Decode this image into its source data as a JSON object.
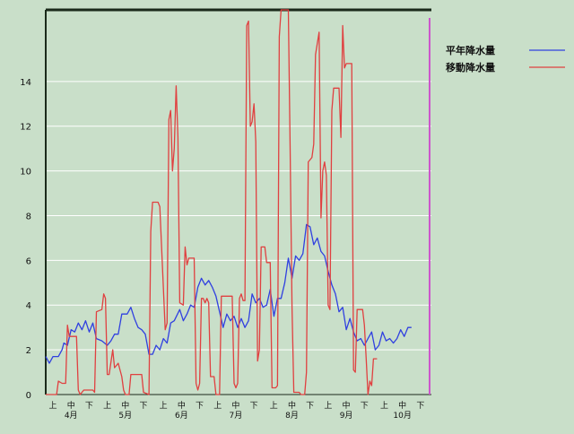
{
  "chart_data": {
    "type": "line",
    "title": "",
    "xlabel": "",
    "ylabel": "",
    "ylim": [
      0,
      17.2
    ],
    "y_ticks": [
      0,
      2,
      4,
      6,
      8,
      10,
      12,
      14
    ],
    "grid": true,
    "legend_position": "top-right",
    "x_tick_labels": [
      {
        "label": "上",
        "x": 1
      },
      {
        "label": "中",
        "x": 11
      },
      {
        "label": "下",
        "x": 21
      },
      {
        "label": "上",
        "x": 31
      },
      {
        "label": "中",
        "x": 41
      },
      {
        "label": "下",
        "x": 51
      },
      {
        "label": "上",
        "x": 62
      },
      {
        "label": "中",
        "x": 72
      },
      {
        "label": "下",
        "x": 82
      },
      {
        "label": "上",
        "x": 92
      },
      {
        "label": "中",
        "x": 102
      },
      {
        "label": "下",
        "x": 112
      },
      {
        "label": "上",
        "x": 123
      },
      {
        "label": "中",
        "x": 133
      },
      {
        "label": "下",
        "x": 143
      },
      {
        "label": "上",
        "x": 153
      },
      {
        "label": "中",
        "x": 163
      },
      {
        "label": "下",
        "x": 173
      },
      {
        "label": "上",
        "x": 184
      },
      {
        "label": "中",
        "x": 194
      },
      {
        "label": "下",
        "x": 204
      }
    ],
    "month_labels": [
      {
        "label": "4月",
        "x": 11
      },
      {
        "label": "5月",
        "x": 41
      },
      {
        "label": "6月",
        "x": 72
      },
      {
        "label": "7月",
        "x": 102
      },
      {
        "label": "8月",
        "x": 133
      },
      {
        "label": "9月",
        "x": 163
      },
      {
        "label": "10月",
        "x": 194
      }
    ],
    "x_range": [
      0,
      213
    ],
    "marker_x": 212,
    "series": [
      {
        "name": "平年降水量",
        "color": "#3040e0",
        "points": [
          [
            0,
            1.7
          ],
          [
            2,
            1.4
          ],
          [
            4,
            1.7
          ],
          [
            7,
            1.7
          ],
          [
            9,
            2.0
          ],
          [
            10,
            2.3
          ],
          [
            12,
            2.2
          ],
          [
            14,
            2.9
          ],
          [
            16,
            2.8
          ],
          [
            18,
            3.2
          ],
          [
            20,
            2.9
          ],
          [
            22,
            3.3
          ],
          [
            24,
            2.8
          ],
          [
            26,
            3.2
          ],
          [
            28,
            2.5
          ],
          [
            31,
            2.4
          ],
          [
            34,
            2.2
          ],
          [
            36,
            2.4
          ],
          [
            38,
            2.7
          ],
          [
            40,
            2.7
          ],
          [
            42,
            3.6
          ],
          [
            45,
            3.6
          ],
          [
            47,
            3.9
          ],
          [
            49,
            3.4
          ],
          [
            51,
            3.0
          ],
          [
            53,
            2.9
          ],
          [
            55,
            2.7
          ],
          [
            57,
            1.8
          ],
          [
            59,
            1.8
          ],
          [
            61,
            2.2
          ],
          [
            63,
            2.0
          ],
          [
            65,
            2.5
          ],
          [
            67,
            2.3
          ],
          [
            69,
            3.2
          ],
          [
            71,
            3.3
          ],
          [
            74,
            3.8
          ],
          [
            76,
            3.3
          ],
          [
            78,
            3.6
          ],
          [
            80,
            4.0
          ],
          [
            82,
            3.9
          ],
          [
            84,
            4.8
          ],
          [
            86,
            5.2
          ],
          [
            88,
            4.9
          ],
          [
            90,
            5.1
          ],
          [
            92,
            4.8
          ],
          [
            94,
            4.4
          ],
          [
            96,
            3.7
          ],
          [
            98,
            3.0
          ],
          [
            100,
            3.6
          ],
          [
            102,
            3.3
          ],
          [
            104,
            3.5
          ],
          [
            106,
            3.0
          ],
          [
            108,
            3.4
          ],
          [
            110,
            3.0
          ],
          [
            112,
            3.3
          ],
          [
            114,
            4.5
          ],
          [
            116,
            4.1
          ],
          [
            118,
            4.3
          ],
          [
            120,
            3.9
          ],
          [
            122,
            4.0
          ],
          [
            124,
            4.7
          ],
          [
            126,
            3.5
          ],
          [
            128,
            4.3
          ],
          [
            130,
            4.3
          ],
          [
            132,
            5.0
          ],
          [
            134,
            6.1
          ],
          [
            136,
            5.2
          ],
          [
            138,
            6.2
          ],
          [
            140,
            6.0
          ],
          [
            142,
            6.3
          ],
          [
            144,
            7.6
          ],
          [
            146,
            7.5
          ],
          [
            148,
            6.7
          ],
          [
            150,
            7.0
          ],
          [
            152,
            6.4
          ],
          [
            154,
            6.2
          ],
          [
            156,
            5.5
          ],
          [
            158,
            4.9
          ],
          [
            160,
            4.5
          ],
          [
            162,
            3.7
          ],
          [
            164,
            3.9
          ],
          [
            166,
            2.9
          ],
          [
            168,
            3.4
          ],
          [
            170,
            2.8
          ],
          [
            172,
            2.4
          ],
          [
            174,
            2.5
          ],
          [
            176,
            2.2
          ],
          [
            178,
            2.5
          ],
          [
            180,
            2.8
          ],
          [
            182,
            2.0
          ],
          [
            184,
            2.2
          ],
          [
            186,
            2.8
          ],
          [
            188,
            2.4
          ],
          [
            190,
            2.5
          ],
          [
            192,
            2.3
          ],
          [
            194,
            2.5
          ],
          [
            196,
            2.9
          ],
          [
            198,
            2.6
          ],
          [
            200,
            3.0
          ],
          [
            202,
            3.0
          ]
        ]
      },
      {
        "name": "移動降水量",
        "color": "#e04040",
        "points": [
          [
            0,
            0
          ],
          [
            6,
            0
          ],
          [
            7,
            0.6
          ],
          [
            9,
            0.5
          ],
          [
            11,
            0.5
          ],
          [
            12,
            3.1
          ],
          [
            13,
            2.6
          ],
          [
            17,
            2.6
          ],
          [
            18,
            0.2
          ],
          [
            19,
            0
          ],
          [
            21,
            0.2
          ],
          [
            26,
            0.2
          ],
          [
            27,
            0.1
          ],
          [
            28,
            3.7
          ],
          [
            31,
            3.8
          ],
          [
            32,
            4.5
          ],
          [
            33,
            4.3
          ],
          [
            34,
            0.9
          ],
          [
            35,
            0.9
          ],
          [
            37,
            2.0
          ],
          [
            38,
            1.2
          ],
          [
            40,
            1.4
          ],
          [
            42,
            0.8
          ],
          [
            43,
            0.2
          ],
          [
            44,
            0
          ],
          [
            46,
            0
          ],
          [
            47,
            0.9
          ],
          [
            53,
            0.9
          ],
          [
            54,
            0.1
          ],
          [
            57,
            0
          ],
          [
            58,
            7.3
          ],
          [
            59,
            8.6
          ],
          [
            62,
            8.6
          ],
          [
            63,
            8.4
          ],
          [
            66,
            2.9
          ],
          [
            67,
            3.2
          ],
          [
            68,
            12.3
          ],
          [
            69,
            12.7
          ],
          [
            70,
            10.0
          ],
          [
            71,
            11.0
          ],
          [
            72,
            13.8
          ],
          [
            73,
            11.5
          ],
          [
            74,
            4.1
          ],
          [
            76,
            4.0
          ],
          [
            77,
            6.6
          ],
          [
            78,
            5.8
          ],
          [
            79,
            6.1
          ],
          [
            82,
            6.1
          ],
          [
            83,
            0.5
          ],
          [
            84,
            0.2
          ],
          [
            85,
            0.5
          ],
          [
            86,
            4.3
          ],
          [
            87,
            4.3
          ],
          [
            88,
            4.1
          ],
          [
            89,
            4.3
          ],
          [
            90,
            4.1
          ],
          [
            91,
            0.8
          ],
          [
            93,
            0.8
          ],
          [
            94,
            0
          ],
          [
            96,
            0
          ],
          [
            97,
            4.4
          ],
          [
            103,
            4.4
          ],
          [
            104,
            0.5
          ],
          [
            105,
            0.3
          ],
          [
            106,
            0.5
          ],
          [
            107,
            4.3
          ],
          [
            108,
            4.5
          ],
          [
            109,
            4.2
          ],
          [
            110,
            4.2
          ],
          [
            111,
            16.5
          ],
          [
            112,
            16.7
          ],
          [
            113,
            12.0
          ],
          [
            114,
            12.2
          ],
          [
            115,
            13.0
          ],
          [
            116,
            11.3
          ],
          [
            117,
            1.5
          ],
          [
            118,
            2.0
          ],
          [
            119,
            6.6
          ],
          [
            121,
            6.6
          ],
          [
            122,
            5.9
          ],
          [
            124,
            5.9
          ],
          [
            125,
            0.3
          ],
          [
            127,
            0.3
          ],
          [
            128,
            0.4
          ],
          [
            129,
            16.0
          ],
          [
            130,
            17.2
          ],
          [
            134,
            17.2
          ],
          [
            135,
            11.0
          ],
          [
            136,
            3.9
          ],
          [
            137,
            0.1
          ],
          [
            140,
            0.1
          ],
          [
            141,
            0
          ],
          [
            143,
            0
          ],
          [
            144,
            1.0
          ],
          [
            145,
            10.4
          ],
          [
            147,
            10.6
          ],
          [
            148,
            11.2
          ],
          [
            149,
            15.2
          ],
          [
            150,
            15.7
          ],
          [
            151,
            16.2
          ],
          [
            152,
            7.9
          ],
          [
            153,
            10.0
          ],
          [
            154,
            10.4
          ],
          [
            155,
            9.8
          ],
          [
            156,
            4.0
          ],
          [
            157,
            3.8
          ],
          [
            158,
            12.7
          ],
          [
            159,
            13.7
          ],
          [
            162,
            13.7
          ],
          [
            163,
            11.5
          ],
          [
            164,
            16.5
          ],
          [
            165,
            14.6
          ],
          [
            166,
            14.8
          ],
          [
            169,
            14.8
          ],
          [
            170,
            1.1
          ],
          [
            171,
            1.0
          ],
          [
            172,
            3.8
          ],
          [
            175,
            3.8
          ],
          [
            176,
            3.1
          ],
          [
            177,
            1.6
          ],
          [
            178,
            0
          ],
          [
            179,
            0.6
          ],
          [
            180,
            0.4
          ],
          [
            181,
            1.6
          ],
          [
            183,
            1.6
          ]
        ]
      }
    ]
  }
}
